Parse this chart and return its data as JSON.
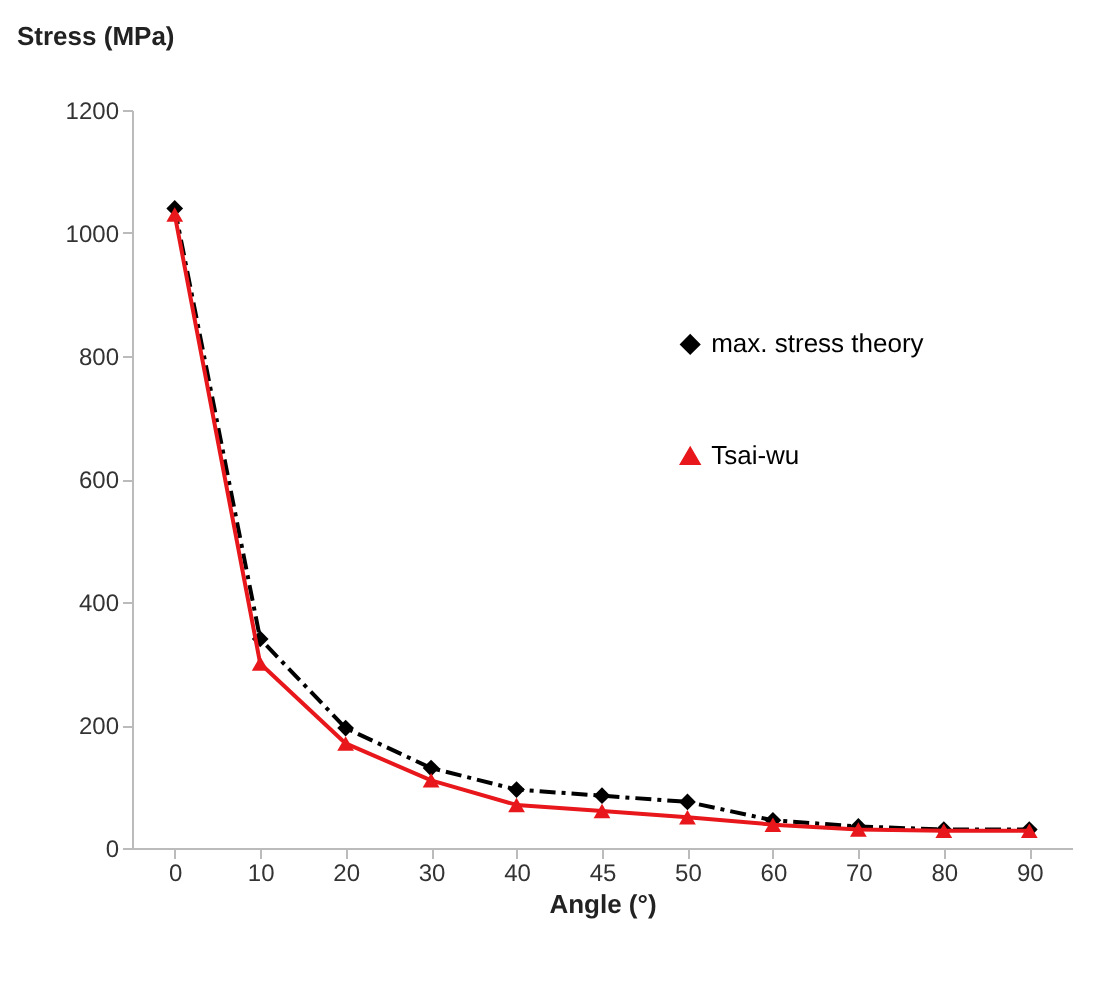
{
  "chart_data": {
    "type": "line",
    "xlabel": "Angle (°)",
    "ylabel": "Stress (MPa)",
    "categories": [
      "0",
      "10",
      "20",
      "30",
      "40",
      "45",
      "50",
      "60",
      "70",
      "80",
      "90"
    ],
    "series": [
      {
        "name": "max. stress theory",
        "color": "#000000",
        "marker": "diamond",
        "line_style": "dashed",
        "values": [
          1040,
          340,
          195,
          130,
          95,
          85,
          75,
          45,
          35,
          30,
          30
        ]
      },
      {
        "name": "Tsai-wu",
        "color": "#e8171b",
        "marker": "triangle",
        "line_style": "solid",
        "values": [
          1030,
          300,
          170,
          110,
          70,
          60,
          50,
          38,
          30,
          28,
          28
        ]
      }
    ],
    "ylim": [
      0,
      1200
    ],
    "yticks": [
      0,
      200,
      400,
      600,
      800,
      1000,
      1200
    ],
    "grid": false,
    "legend": "right"
  }
}
